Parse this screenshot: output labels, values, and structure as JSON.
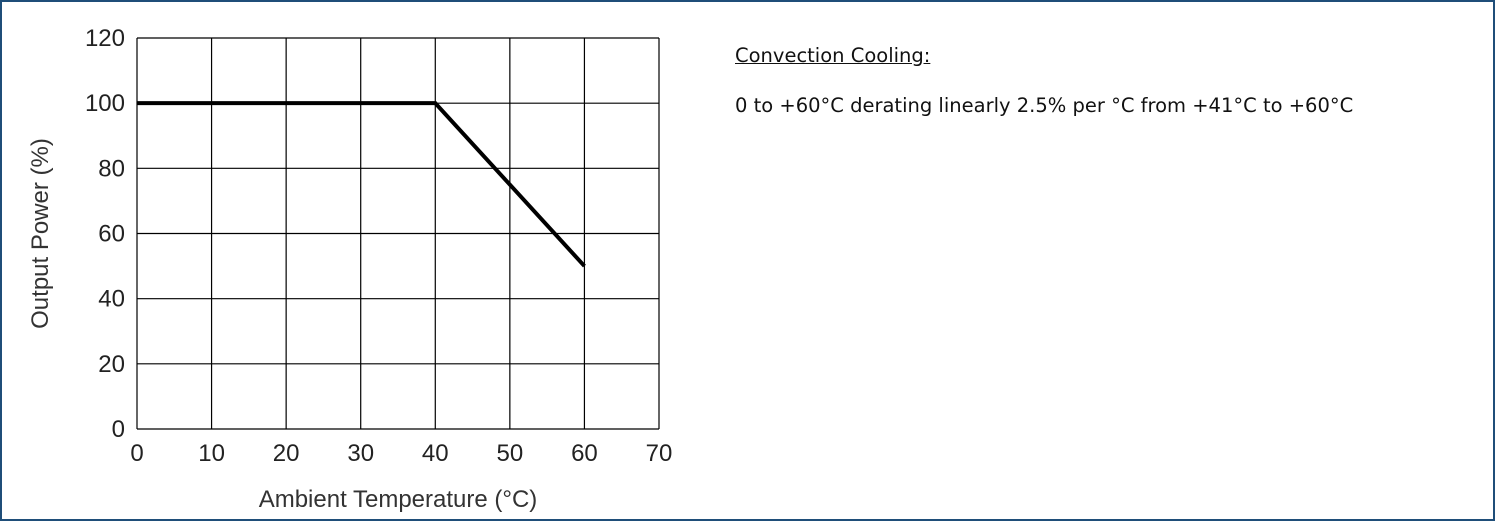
{
  "notes": {
    "heading": "Convection Cooling:",
    "body": "0 to +60°C derating linearly 2.5% per °C from +41°C to +60°C"
  },
  "chart_data": {
    "type": "line",
    "title": "",
    "xlabel": "Ambient Temperature (°C)",
    "ylabel": "Output Power (%)",
    "xlim": [
      0,
      70
    ],
    "ylim": [
      0,
      120
    ],
    "xticks": [
      0,
      10,
      20,
      30,
      40,
      50,
      60,
      70
    ],
    "yticks": [
      0,
      20,
      40,
      60,
      80,
      100,
      120
    ],
    "grid": true,
    "legend": "none",
    "line_color": "#000000",
    "series": [
      {
        "x": [
          0,
          40,
          60
        ],
        "y": [
          100,
          100,
          50
        ]
      }
    ]
  }
}
